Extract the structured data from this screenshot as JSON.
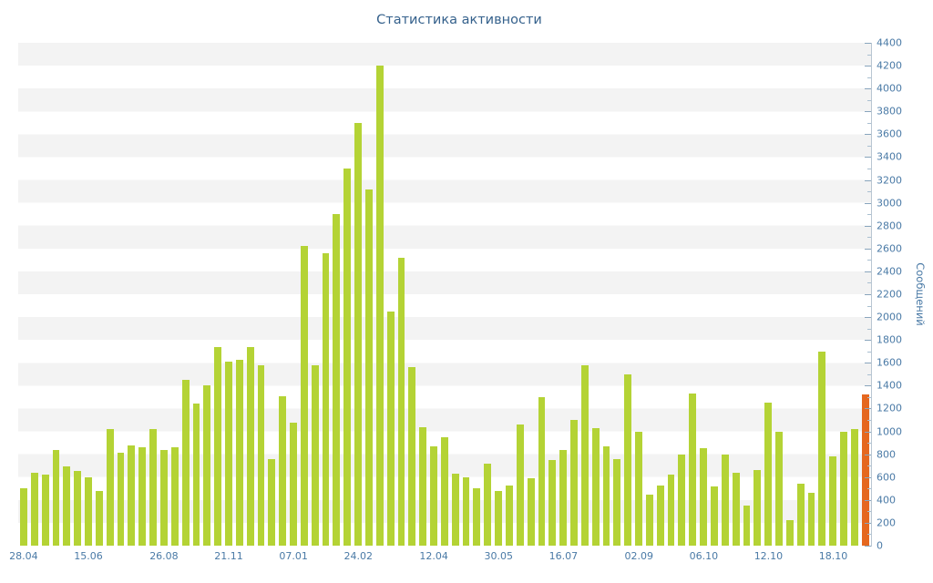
{
  "chart": {
    "title": "Статистика активности",
    "ylabel": "Сообщений"
  },
  "colors": {
    "bar": "#b4d335",
    "highlight_bar": "#e5671f",
    "axis_text": "#4a7aa6",
    "title_text": "#35618c",
    "stripe": "#f3f3f3"
  },
  "chart_data": {
    "type": "bar",
    "title": "Статистика активности",
    "xlabel": "",
    "ylabel": "Сообщений",
    "ylim": [
      0,
      4400
    ],
    "ytick_step": 200,
    "grid": "alternating-horizontal-stripes",
    "legend": "none",
    "bar_color": "#b4d335",
    "last_bar_color": "#e5671f",
    "y_ticks": [
      0,
      200,
      400,
      600,
      800,
      1000,
      1200,
      1400,
      1600,
      1800,
      2000,
      2200,
      2400,
      2600,
      2800,
      3000,
      3200,
      3400,
      3600,
      3800,
      4000,
      4200,
      4400
    ],
    "values": [
      500,
      640,
      620,
      840,
      690,
      650,
      600,
      480,
      1020,
      810,
      880,
      860,
      1020,
      840,
      860,
      1450,
      1240,
      1400,
      1740,
      1610,
      1630,
      1740,
      1580,
      760,
      1310,
      1080,
      2620,
      1580,
      2560,
      2900,
      3300,
      3700,
      3120,
      4200,
      2050,
      2520,
      1560,
      1040,
      870,
      950,
      630,
      600,
      500,
      720,
      480,
      530,
      1060,
      590,
      1300,
      750,
      840,
      1100,
      1580,
      1030,
      870,
      760,
      1500,
      1000,
      450,
      530,
      620,
      800,
      1330,
      850,
      520,
      800,
      640,
      350,
      660,
      1250,
      1000,
      220,
      540,
      460,
      1700,
      780,
      1000,
      1020,
      1320
    ],
    "x_ticks": [
      {
        "label": "28.04",
        "bar_index": 0
      },
      {
        "label": "15.06",
        "bar_index": 6
      },
      {
        "label": "26.08",
        "bar_index": 13
      },
      {
        "label": "21.11",
        "bar_index": 19
      },
      {
        "label": "07.01",
        "bar_index": 25
      },
      {
        "label": "24.02",
        "bar_index": 31
      },
      {
        "label": "12.04",
        "bar_index": 38
      },
      {
        "label": "30.05",
        "bar_index": 44
      },
      {
        "label": "16.07",
        "bar_index": 50
      },
      {
        "label": "02.09",
        "bar_index": 57
      },
      {
        "label": "06.10",
        "bar_index": 63
      },
      {
        "label": "12.10",
        "bar_index": 69
      },
      {
        "label": "18.10",
        "bar_index": 75
      }
    ]
  }
}
